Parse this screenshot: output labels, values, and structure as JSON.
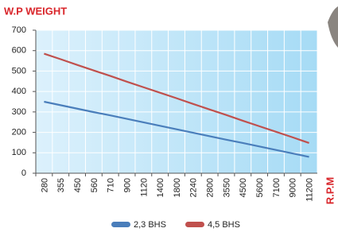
{
  "chart_data": {
    "type": "line",
    "title": "W.P WEIGHT",
    "xlabel": "R.P.M",
    "categories": [
      "280",
      "355",
      "450",
      "560",
      "710",
      "900",
      "1120",
      "1400",
      "1800",
      "2240",
      "2800",
      "3550",
      "4500",
      "5600",
      "7100",
      "9000",
      "11200"
    ],
    "series": [
      {
        "name": "2,3 BHS",
        "color": "#4a7ebb",
        "values": [
          350,
          333,
          316,
          299,
          283,
          266,
          249,
          232,
          215,
          198,
          181,
          164,
          148,
          131,
          114,
          97,
          80
        ]
      },
      {
        "name": "4,5 BHS",
        "color": "#c0504d",
        "values": [
          585,
          558,
          530,
          503,
          476,
          448,
          421,
          394,
          367,
          339,
          312,
          285,
          257,
          230,
          203,
          176,
          148
        ]
      }
    ],
    "ylim": [
      0,
      700
    ],
    "yticks": [
      0,
      100,
      200,
      300,
      400,
      500,
      600,
      700
    ],
    "grid": true
  }
}
